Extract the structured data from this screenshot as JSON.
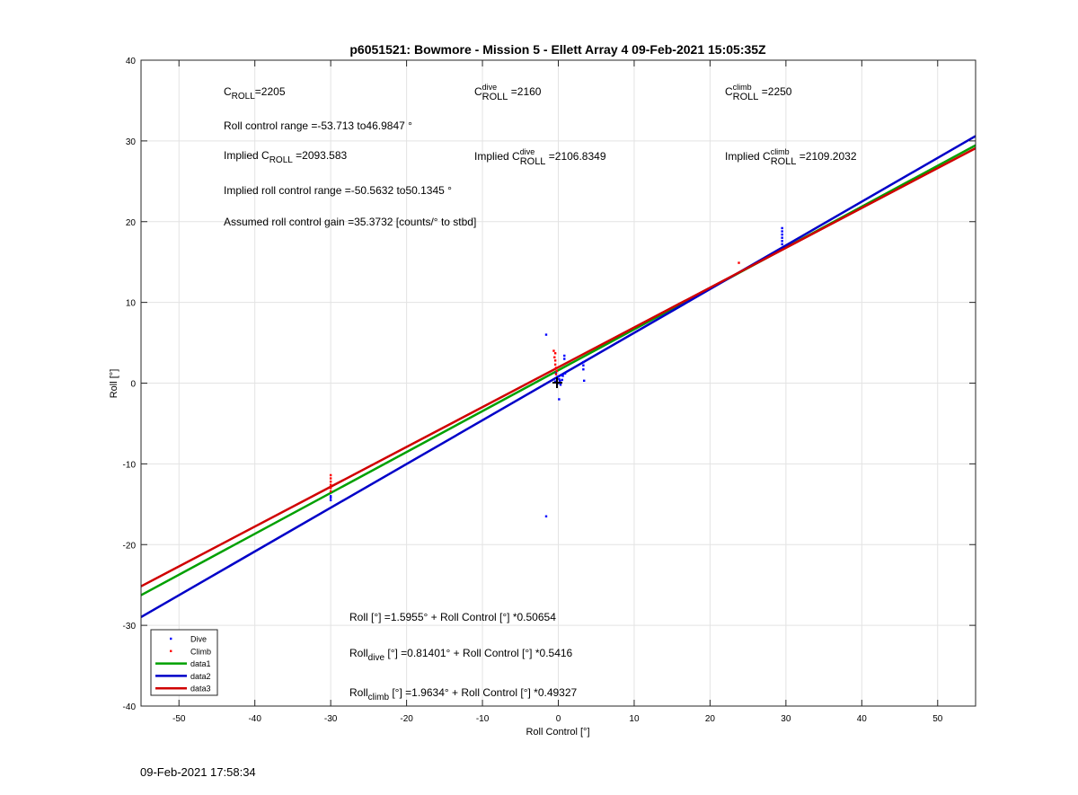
{
  "page": {
    "timestamp": "09-Feb-2021 17:58:34"
  },
  "chart_data": {
    "type": "scatter",
    "title": "p6051521: Bowmore - Mission 5 - Ellett Array 4 09-Feb-2021 15:05:35Z",
    "xlabel": "Roll Control [°]",
    "ylabel": "Roll [°]",
    "xlim": [
      -55,
      55
    ],
    "ylim": [
      -40,
      40
    ],
    "xticks": [
      -50,
      -40,
      -30,
      -20,
      -10,
      0,
      10,
      20,
      30,
      40,
      50
    ],
    "yticks": [
      -40,
      -30,
      -20,
      -10,
      0,
      10,
      20,
      30,
      40
    ],
    "grid": true,
    "legend_position": "bottom-left",
    "colors": {
      "dive": "#0000ff",
      "climb": "#ff0000",
      "data1": "#00a000",
      "data2": "#0000c8",
      "data3": "#d00000"
    },
    "annotations": [
      {
        "key": "croll",
        "prefix": "C",
        "sub": "ROLL",
        "sup": "",
        "suffix": "=2205"
      },
      {
        "key": "croll_dive",
        "prefix": "C",
        "sub": "ROLL",
        "sup": "dive",
        "suffix": " =2160"
      },
      {
        "key": "croll_climb",
        "prefix": "C",
        "sub": "ROLL",
        "sup": "climb",
        "suffix": " =2250"
      },
      {
        "key": "range",
        "prefix": "Roll control range =-53.713 to46.9847 °",
        "sub": "",
        "sup": "",
        "suffix": ""
      },
      {
        "key": "implied",
        "prefix": "Implied C",
        "sub": "ROLL",
        "sup": "",
        "suffix": " =2093.583"
      },
      {
        "key": "implied_dive",
        "prefix": "Implied C",
        "sub": "ROLL",
        "sup": "dive",
        "suffix": " =2106.8349"
      },
      {
        "key": "implied_climb",
        "prefix": "Implied C",
        "sub": "ROLL",
        "sup": "climb",
        "suffix": " =2109.2032"
      },
      {
        "key": "implied_range",
        "prefix": "Implied roll control range =-50.5632 to50.1345 °",
        "sub": "",
        "sup": "",
        "suffix": ""
      },
      {
        "key": "gain",
        "prefix": "Assumed roll control gain =35.3732 [counts/° to stbd]",
        "sub": "",
        "sup": "",
        "suffix": ""
      },
      {
        "key": "eq_all",
        "prefix": "Roll [°] =1.5955° + Roll Control [°] *0.50654",
        "sub": "",
        "sup": "",
        "suffix": ""
      },
      {
        "key": "eq_dive",
        "prefix": "Roll",
        "sub": "dive",
        "sup": "",
        "suffix": " [°] =0.81401° + Roll Control [°] *0.5416"
      },
      {
        "key": "eq_climb",
        "prefix": "Roll",
        "sub": "climb",
        "sup": "",
        "suffix": " [°] =1.9634° + Roll Control [°] *0.49327"
      }
    ],
    "series": [
      {
        "name": "Dive",
        "kind": "points",
        "color": "#0000ff",
        "points": [
          [
            -30,
            -14.2
          ],
          [
            -30,
            -14.5
          ],
          [
            -30,
            -14.0
          ],
          [
            -1.6,
            6.0
          ],
          [
            -1.6,
            -16.5
          ],
          [
            -0.3,
            1.2
          ],
          [
            -0.1,
            0.8
          ],
          [
            0.1,
            0.5
          ],
          [
            0.2,
            0.3
          ],
          [
            0.3,
            -0.2
          ],
          [
            0.1,
            -2.0
          ],
          [
            0.4,
            1.0
          ],
          [
            0.5,
            0.4
          ],
          [
            0.6,
            0.9
          ],
          [
            0.8,
            3.4
          ],
          [
            0.8,
            3.0
          ],
          [
            0.9,
            1.2
          ],
          [
            3.3,
            2.6
          ],
          [
            3.3,
            2.2
          ],
          [
            3.3,
            1.7
          ],
          [
            3.4,
            0.3
          ],
          [
            0.0,
            0.0
          ],
          [
            -0.4,
            0.2
          ],
          [
            29.5,
            19.2
          ],
          [
            29.5,
            18.8
          ],
          [
            29.5,
            18.4
          ],
          [
            29.5,
            18.0
          ],
          [
            29.5,
            17.6
          ],
          [
            29.5,
            17.2
          ]
        ]
      },
      {
        "name": "Climb",
        "kind": "points",
        "color": "#ff0000",
        "points": [
          [
            -30,
            -11.4
          ],
          [
            -30,
            -11.8
          ],
          [
            -30,
            -12.2
          ],
          [
            -30,
            -12.6
          ],
          [
            -30,
            -13.0
          ],
          [
            -30,
            -13.4
          ],
          [
            -0.6,
            4.0
          ],
          [
            -0.4,
            3.7
          ],
          [
            -0.5,
            3.2
          ],
          [
            -0.4,
            2.8
          ],
          [
            -0.4,
            2.3
          ],
          [
            -0.3,
            1.9
          ],
          [
            -0.2,
            1.5
          ],
          [
            -0.3,
            1.1
          ],
          [
            23.8,
            14.9
          ]
        ]
      },
      {
        "name": "data1",
        "kind": "line",
        "color": "#00a000",
        "intercept": 1.5955,
        "slope": 0.50654
      },
      {
        "name": "data2",
        "kind": "line",
        "color": "#0000c8",
        "intercept": 0.81401,
        "slope": 0.5416
      },
      {
        "name": "data3",
        "kind": "line",
        "color": "#d00000",
        "intercept": 1.9634,
        "slope": 0.49327
      }
    ]
  }
}
